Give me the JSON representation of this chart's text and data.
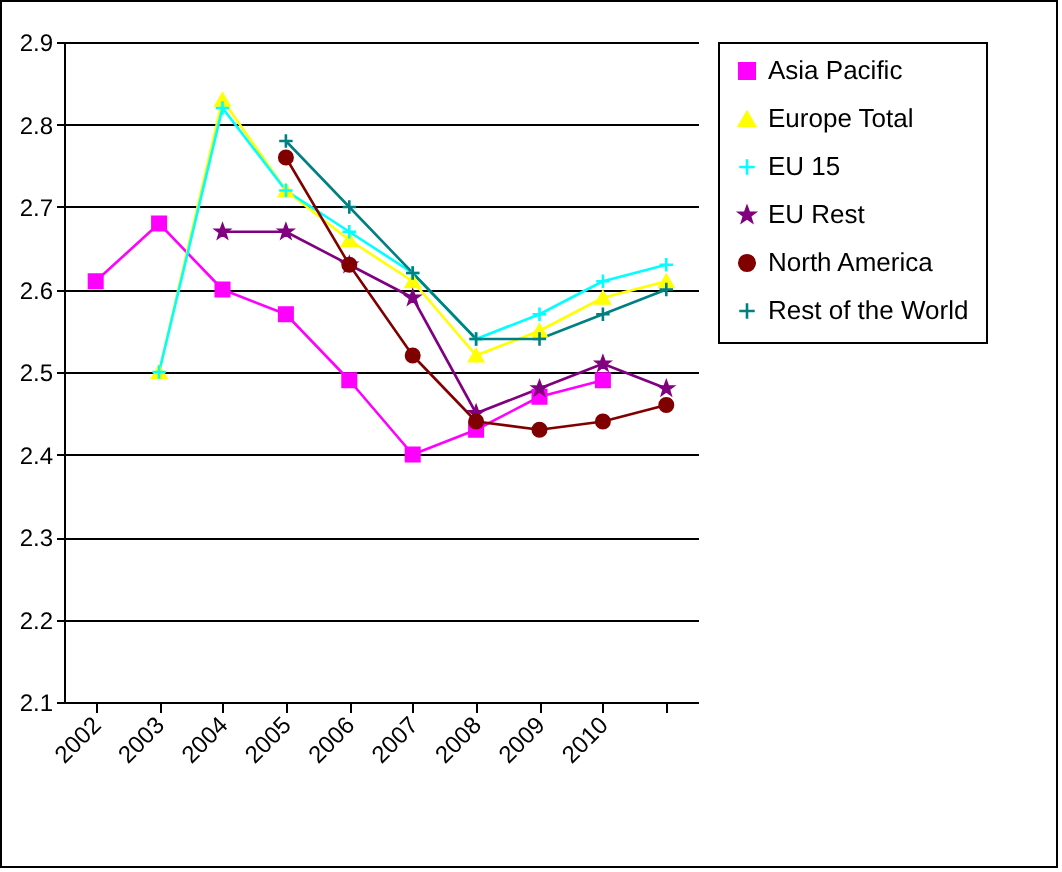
{
  "chart_data": {
    "type": "line",
    "categories": [
      "2002",
      "2003",
      "2004",
      "2005",
      "2006",
      "2007",
      "2008",
      "2009",
      "2010",
      null
    ],
    "ylim": [
      2.1,
      2.9
    ],
    "yticks": [
      2.1,
      2.2,
      2.3,
      2.4,
      2.5,
      2.6,
      2.7,
      2.8,
      2.9
    ],
    "grid": "y",
    "legend": "right",
    "series": [
      {
        "name": "Asia Pacific",
        "color": "#ff00ff",
        "marker": "square",
        "values": [
          2.61,
          2.68,
          2.6,
          2.57,
          2.49,
          2.4,
          2.43,
          2.47,
          2.49,
          null
        ]
      },
      {
        "name": "Europe Total",
        "color": "#ffff00",
        "marker": "triangle",
        "values": [
          null,
          2.5,
          2.83,
          2.72,
          2.66,
          2.61,
          2.52,
          2.55,
          2.59,
          2.61
        ]
      },
      {
        "name": "EU 15",
        "color": "#00ffff",
        "marker": "cross",
        "values": [
          null,
          2.5,
          2.82,
          2.72,
          2.67,
          2.62,
          2.54,
          2.57,
          2.61,
          2.63
        ]
      },
      {
        "name": "EU Rest",
        "color": "#800080",
        "marker": "star",
        "values": [
          null,
          null,
          2.67,
          2.67,
          2.63,
          2.59,
          2.45,
          2.48,
          2.51,
          2.48
        ]
      },
      {
        "name": "North America",
        "color": "#800000",
        "marker": "circle",
        "values": [
          null,
          null,
          null,
          2.76,
          2.63,
          2.52,
          2.44,
          2.43,
          2.44,
          2.46
        ]
      },
      {
        "name": "Rest of the World",
        "color": "#008080",
        "marker": "cross",
        "values": [
          null,
          null,
          null,
          2.78,
          2.7,
          2.62,
          2.54,
          2.54,
          2.57,
          2.6
        ]
      }
    ]
  }
}
